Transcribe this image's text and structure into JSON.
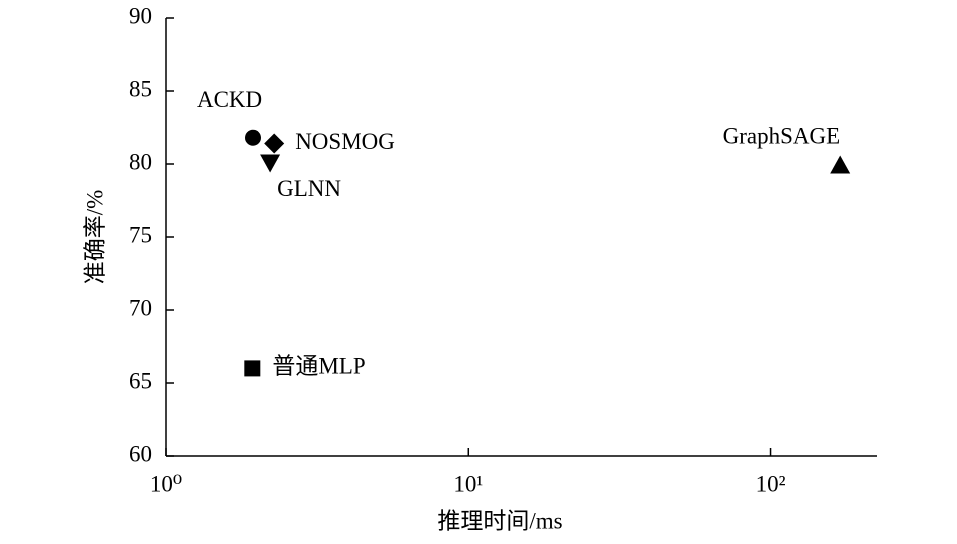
{
  "chart_data": {
    "type": "scatter",
    "x_label": "推理时间/ms",
    "y_label": "准确率/%",
    "x_scale": "log",
    "xlim": [
      1,
      225
    ],
    "ylim": [
      60,
      90
    ],
    "xticks": [
      {
        "value": 1,
        "label": "10⁰"
      },
      {
        "value": 10,
        "label": "10¹"
      },
      {
        "value": 100,
        "label": "10²"
      }
    ],
    "yticks": [
      60,
      65,
      70,
      75,
      80,
      85,
      90
    ],
    "color": "#000000",
    "points": [
      {
        "label": "ACKD",
        "x": 1.94,
        "y": 81.8,
        "marker": "circle"
      },
      {
        "label": "NOSMOG",
        "x": 2.28,
        "y": 81.4,
        "marker": "diamond"
      },
      {
        "label": "GLNN",
        "x": 2.21,
        "y": 80.1,
        "marker": "triangle-down"
      },
      {
        "label": "普通MLP",
        "x": 1.93,
        "y": 66.0,
        "marker": "square"
      },
      {
        "label": "GraphSAGE",
        "x": 170,
        "y": 79.9,
        "marker": "triangle-up"
      }
    ]
  }
}
